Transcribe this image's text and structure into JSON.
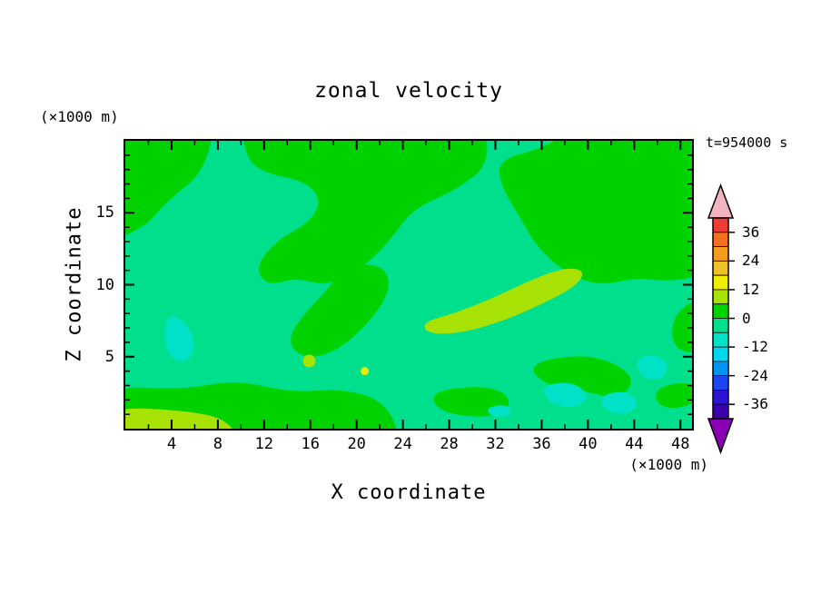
{
  "title": "zonal velocity",
  "timestamp_label": "t=954000 s",
  "axes": {
    "x": {
      "label": "X coordinate",
      "units_label": "(×1000 m)",
      "min": 0,
      "max": 49,
      "major_ticks": [
        4,
        8,
        12,
        16,
        20,
        24,
        28,
        32,
        36,
        40,
        44,
        48
      ],
      "minor_step": 2
    },
    "y": {
      "label": "Z coordinate",
      "units_label": "(×1000 m)",
      "min": 0,
      "max": 20,
      "major_ticks": [
        5,
        10,
        15
      ],
      "minor_step": 1
    }
  },
  "colorbar": {
    "value_top": 42,
    "step": 6,
    "labels": [
      "36",
      "24",
      "12",
      "0",
      "-12",
      "-24",
      "-36"
    ],
    "segment_colors_top_to_bottom": [
      "#ee3b33",
      "#f2701e",
      "#f59b1e",
      "#f0c029",
      "#f0ee00",
      "#a8e205",
      "#00d200",
      "#00e08c",
      "#00e2c8",
      "#00d8f0",
      "#0096f0",
      "#1e46f0",
      "#2a14d2",
      "#3c00aa"
    ],
    "top_arrow_color": "#f2b4be",
    "bottom_arrow_color": "#8c00b4"
  },
  "chart_data": {
    "type": "heatmap",
    "subtype": "filled-contour",
    "title": "zonal velocity",
    "time_label": "t=954000 s",
    "xlabel": "X coordinate",
    "ylabel": "Z coordinate",
    "x_units": "×1000 m",
    "y_units": "×1000 m",
    "x_range": [
      0,
      49
    ],
    "y_range": [
      0,
      20
    ],
    "contour_interval": 6,
    "colorbar_range": [
      -42,
      42
    ],
    "labeled_levels": [
      36,
      24,
      12,
      0,
      -12,
      -24,
      -36
    ],
    "background_level": "-6 to 0",
    "background_color": "#00e08c",
    "regions": [
      {
        "level": "0 to 6",
        "color": "#00d200",
        "points": [
          [
            0,
            20
          ],
          [
            8,
            20
          ],
          [
            6.8,
            17.8
          ],
          [
            3.7,
            15.9
          ],
          [
            1.6,
            13.9
          ],
          [
            0,
            12.9
          ]
        ]
      },
      {
        "level": "0 to 6",
        "color": "#00d200",
        "points": [
          [
            10,
            20
          ],
          [
            30.8,
            20
          ],
          [
            31.6,
            18.4
          ],
          [
            28.4,
            16.5
          ],
          [
            24.9,
            15.3
          ],
          [
            22.9,
            13.1
          ],
          [
            20.6,
            11.2
          ],
          [
            17.4,
            9.9
          ],
          [
            14.7,
            10.5
          ],
          [
            12.3,
            9.9
          ],
          [
            11.2,
            11.2
          ],
          [
            13.1,
            13.1
          ],
          [
            15.9,
            14.3
          ],
          [
            17,
            15.9
          ],
          [
            15.5,
            17.2
          ],
          [
            12.3,
            17.7
          ],
          [
            10.4,
            18.7
          ]
        ]
      },
      {
        "level": "0 to 6",
        "color": "#00d200",
        "points": [
          [
            32.2,
            18.7
          ],
          [
            36.3,
            19.5
          ],
          [
            41,
            20
          ],
          [
            49,
            20
          ],
          [
            49,
            10.9
          ],
          [
            47.3,
            10.2
          ],
          [
            44.1,
            10.5
          ],
          [
            41,
            9.9
          ],
          [
            37.9,
            10.9
          ],
          [
            35.5,
            12.7
          ],
          [
            33.9,
            15
          ],
          [
            32.5,
            16.8
          ]
        ]
      },
      {
        "level": "0 to 6",
        "color": "#00d200",
        "points": [
          [
            20.2,
            11.5
          ],
          [
            22.5,
            11.2
          ],
          [
            22.9,
            9.6
          ],
          [
            21.4,
            7.7
          ],
          [
            19,
            5.8
          ],
          [
            16.6,
            4.9
          ],
          [
            14.7,
            5.2
          ],
          [
            14.1,
            6.4
          ],
          [
            15.5,
            8
          ],
          [
            17.4,
            9.6
          ],
          [
            18.6,
            10.9
          ]
        ]
      },
      {
        "level": "0 to 6",
        "color": "#00d200",
        "points": [
          [
            49,
            9.6
          ],
          [
            47.7,
            8.3
          ],
          [
            47.1,
            6.4
          ],
          [
            48.1,
            5.2
          ],
          [
            49,
            5.5
          ]
        ]
      },
      {
        "level": "0 to 6",
        "color": "#00d200",
        "points": [
          [
            0,
            3
          ],
          [
            4.9,
            2.7
          ],
          [
            9.6,
            3.4
          ],
          [
            14.3,
            2.5
          ],
          [
            19,
            2.8
          ],
          [
            22.9,
            1.7
          ],
          [
            24.1,
            0
          ],
          [
            0,
            0
          ]
        ]
      },
      {
        "level": "0 to 6",
        "color": "#00d200",
        "points": [
          [
            26.9,
            2.7
          ],
          [
            31.6,
            3
          ],
          [
            33.5,
            2
          ],
          [
            32.4,
            0.8
          ],
          [
            28.4,
            0.9
          ],
          [
            26.5,
            1.7
          ]
        ]
      },
      {
        "level": "0 to 6",
        "color": "#00d200",
        "points": [
          [
            34.7,
            4.5
          ],
          [
            39.4,
            5.2
          ],
          [
            42.6,
            4.5
          ],
          [
            44.1,
            3.3
          ],
          [
            42.6,
            2
          ],
          [
            39.4,
            2.7
          ],
          [
            36.3,
            3
          ]
        ]
      },
      {
        "level": "0 to 6",
        "color": "#00d200",
        "points": [
          [
            45.7,
            2.7
          ],
          [
            48.1,
            3.3
          ],
          [
            49,
            2.7
          ],
          [
            48.4,
            1.4
          ],
          [
            46.1,
            1.5
          ]
        ]
      },
      {
        "level": "6 to 12",
        "color": "#a8e205",
        "points": [
          [
            25.7,
            7.4
          ],
          [
            28.4,
            8
          ],
          [
            31.6,
            9
          ],
          [
            34.7,
            10.2
          ],
          [
            37.9,
            11.2
          ],
          [
            39.8,
            11
          ],
          [
            39,
            9.9
          ],
          [
            35.9,
            8.6
          ],
          [
            32.4,
            7.4
          ],
          [
            28.8,
            6.6
          ],
          [
            26.1,
            6.6
          ]
        ]
      },
      {
        "level": "6 to 12",
        "color": "#a8e205",
        "points": [
          [
            0,
            1.5
          ],
          [
            4.9,
            1.3
          ],
          [
            9.2,
            0.6
          ],
          [
            10.2,
            0
          ],
          [
            0,
            0
          ]
        ]
      },
      {
        "level": "6 to 12",
        "color": "#a8e205",
        "circle": {
          "cx": 15.9,
          "cy": 4.7,
          "r": 0.55
        }
      },
      {
        "level": "-12 to -6",
        "color": "#00e2c8",
        "points": [
          [
            3.7,
            8
          ],
          [
            5.3,
            7.4
          ],
          [
            6.1,
            5.8
          ],
          [
            5.3,
            4.5
          ],
          [
            3.9,
            4.9
          ],
          [
            3.3,
            6.4
          ]
        ]
      },
      {
        "level": "-12 to -6",
        "color": "#00e2c8",
        "points": [
          [
            35.9,
            3
          ],
          [
            38.6,
            3.3
          ],
          [
            40.2,
            2.3
          ],
          [
            39,
            1.4
          ],
          [
            36.7,
            1.7
          ]
        ]
      },
      {
        "level": "-12 to -6",
        "color": "#00e2c8",
        "points": [
          [
            41,
            2.3
          ],
          [
            43.3,
            2.7
          ],
          [
            44.5,
            1.7
          ],
          [
            43.3,
            0.9
          ],
          [
            41.4,
            1.3
          ]
        ]
      },
      {
        "level": "-12 to -6",
        "color": "#00e2c8",
        "points": [
          [
            44.1,
            4.9
          ],
          [
            46.1,
            5.2
          ],
          [
            47.1,
            4.2
          ],
          [
            46.1,
            3.3
          ],
          [
            44.5,
            3.6
          ]
        ]
      },
      {
        "level": "-12 to -6",
        "color": "#00e2c8",
        "points": [
          [
            31.2,
            1.5
          ],
          [
            33.1,
            1.7
          ],
          [
            33.5,
            0.9
          ],
          [
            31.6,
            0.8
          ]
        ]
      },
      {
        "level": "12 to 18",
        "color": "#f0ee00",
        "circle": {
          "cx": 20.7,
          "cy": 4.0,
          "r": 0.35
        }
      }
    ]
  }
}
